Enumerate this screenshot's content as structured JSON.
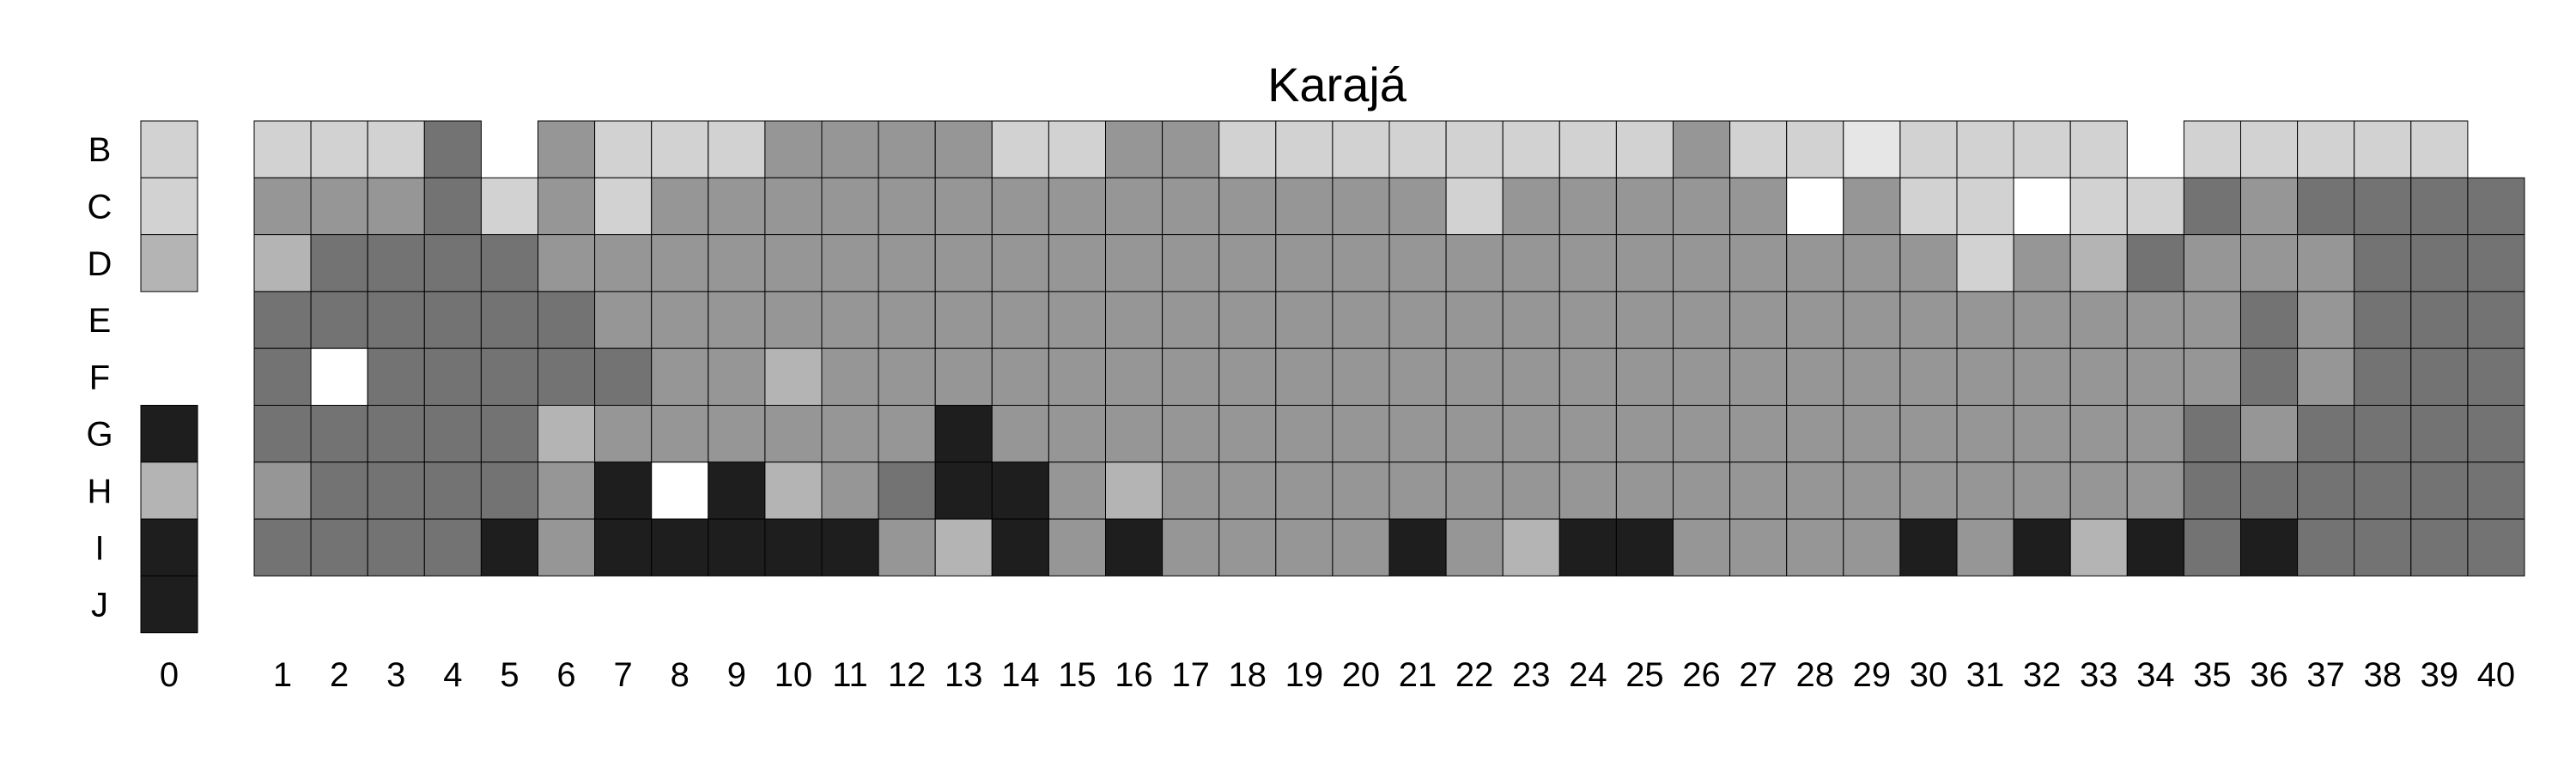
{
  "chart_data": {
    "type": "heatmap",
    "title": "Karajá",
    "colors": {
      "0": "#ffffff",
      "1": "#e6e6e6",
      "2": "#d2d2d2",
      "3": "#b4b4b4",
      "4": "#969696",
      "5": "#737373",
      "6": "#1e1e1e"
    },
    "rows": [
      "B",
      "C",
      "D",
      "E",
      "F",
      "G",
      "H",
      "I",
      "J"
    ],
    "columns": [
      "0",
      "1",
      "2",
      "3",
      "4",
      "5",
      "6",
      "7",
      "8",
      "9",
      "10",
      "11",
      "12",
      "13",
      "14",
      "15",
      "16",
      "17",
      "18",
      "19",
      "20",
      "21",
      "22",
      "23",
      "24",
      "25",
      "26",
      "27",
      "28",
      "29",
      "30",
      "31",
      "32",
      "33",
      "34",
      "35",
      "36",
      "37",
      "38",
      "39",
      "40"
    ],
    "values": [
      [
        2,
        2,
        2,
        2,
        5,
        null,
        4,
        2,
        2,
        2,
        4,
        4,
        4,
        4,
        2,
        2,
        4,
        4,
        2,
        2,
        2,
        2,
        2,
        2,
        2,
        2,
        4,
        2,
        2,
        1,
        2,
        2,
        2,
        2,
        null,
        2,
        2,
        2,
        2,
        2,
        null
      ],
      [
        2,
        4,
        4,
        4,
        5,
        2,
        4,
        2,
        4,
        4,
        4,
        4,
        4,
        4,
        4,
        4,
        4,
        4,
        4,
        4,
        4,
        4,
        2,
        4,
        4,
        4,
        4,
        4,
        0,
        4,
        2,
        2,
        0,
        2,
        2,
        5,
        4,
        5,
        5,
        5,
        5
      ],
      [
        3,
        3,
        5,
        5,
        5,
        5,
        4,
        4,
        4,
        4,
        4,
        4,
        4,
        4,
        4,
        4,
        4,
        4,
        4,
        4,
        4,
        4,
        4,
        4,
        4,
        4,
        4,
        4,
        4,
        4,
        4,
        2,
        4,
        3,
        5,
        4,
        4,
        4,
        5,
        5,
        5
      ],
      [
        null,
        5,
        5,
        5,
        5,
        5,
        5,
        4,
        4,
        4,
        4,
        4,
        4,
        4,
        4,
        4,
        4,
        4,
        4,
        4,
        4,
        4,
        4,
        4,
        4,
        4,
        4,
        4,
        4,
        4,
        4,
        4,
        4,
        4,
        4,
        4,
        5,
        4,
        5,
        5,
        5
      ],
      [
        null,
        5,
        0,
        5,
        5,
        5,
        5,
        5,
        4,
        4,
        3,
        4,
        4,
        4,
        4,
        4,
        4,
        4,
        4,
        4,
        4,
        4,
        4,
        4,
        4,
        4,
        4,
        4,
        4,
        4,
        4,
        4,
        4,
        4,
        4,
        4,
        5,
        4,
        5,
        5,
        5
      ],
      [
        6,
        5,
        5,
        5,
        5,
        5,
        3,
        4,
        4,
        4,
        4,
        4,
        4,
        6,
        4,
        4,
        4,
        4,
        4,
        4,
        4,
        4,
        4,
        4,
        4,
        4,
        4,
        4,
        4,
        4,
        4,
        4,
        4,
        4,
        4,
        5,
        4,
        5,
        5,
        5,
        5
      ],
      [
        3,
        4,
        5,
        5,
        5,
        5,
        4,
        6,
        0,
        6,
        3,
        4,
        5,
        6,
        6,
        4,
        3,
        4,
        4,
        4,
        4,
        4,
        4,
        4,
        4,
        4,
        4,
        4,
        4,
        4,
        4,
        4,
        4,
        4,
        4,
        5,
        5,
        5,
        5,
        5,
        5
      ],
      [
        6,
        5,
        5,
        5,
        5,
        6,
        4,
        6,
        6,
        6,
        6,
        6,
        4,
        3,
        6,
        4,
        6,
        4,
        4,
        4,
        4,
        6,
        4,
        3,
        6,
        6,
        4,
        4,
        4,
        4,
        6,
        4,
        6,
        3,
        6,
        5,
        6,
        5,
        5,
        5,
        5
      ],
      [
        6,
        null,
        null,
        null,
        null,
        null,
        null,
        null,
        null,
        null,
        null,
        null,
        null,
        null,
        null,
        null,
        null,
        null,
        null,
        null,
        null,
        null,
        null,
        null,
        null,
        null,
        null,
        null,
        null,
        null,
        null,
        null,
        null,
        null,
        null,
        null,
        null,
        null,
        null,
        null,
        null
      ]
    ]
  }
}
